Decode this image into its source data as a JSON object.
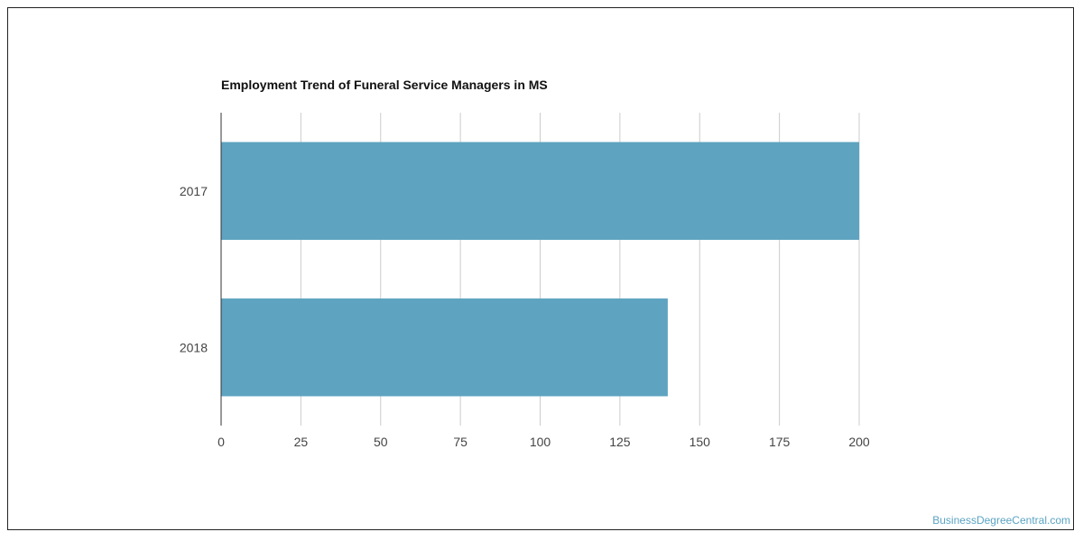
{
  "chart_data": {
    "type": "bar",
    "orientation": "horizontal",
    "title": "Employment Trend of Funeral Service Managers in MS",
    "categories": [
      "2017",
      "2018"
    ],
    "values": [
      200,
      140
    ],
    "xlim": [
      0,
      200
    ],
    "x_ticks": [
      0,
      25,
      50,
      75,
      100,
      125,
      150,
      175,
      200
    ],
    "xlabel": "",
    "ylabel": "",
    "grid": true,
    "legend": "none",
    "bar_color": "#5ea3c0",
    "grid_color": "#cccccc"
  },
  "watermark": "BusinessDegreeCentral.com"
}
